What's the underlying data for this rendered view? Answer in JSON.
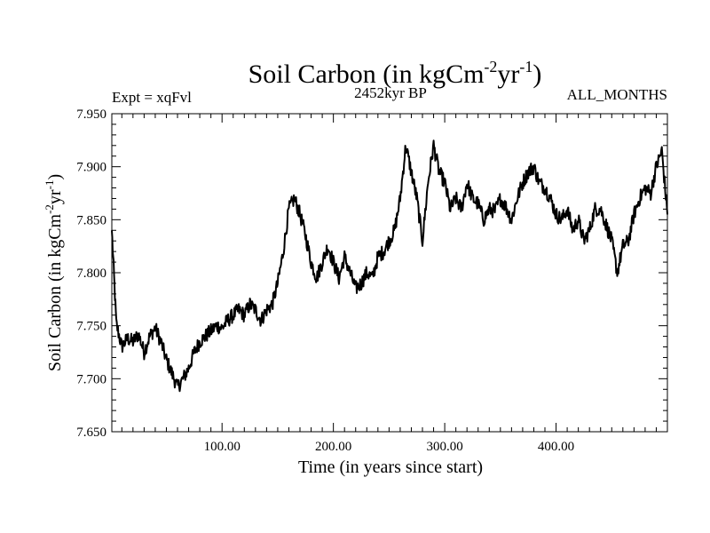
{
  "chart_data": {
    "type": "line",
    "title": {
      "base": "Soil Carbon (in kgCm",
      "sup1": "-2",
      "mid": "yr",
      "sup2": "-1",
      "end": ")"
    },
    "subtitle": "2452kyr BP",
    "left_label": "Expt = xqFvl",
    "right_label": "ALL_MONTHS",
    "xlabel": "Time (in years since start)",
    "ylabel": {
      "base": "Soil Carbon (in kgCm",
      "sup1": "-2",
      "mid": "yr",
      "sup2": "-1",
      "end": ")"
    },
    "xlim": [
      1,
      500
    ],
    "ylim": [
      7.65,
      7.95
    ],
    "x_ticks": [
      100,
      200,
      300,
      400
    ],
    "x_tick_labels": [
      "100.00",
      "200.00",
      "300.00",
      "400.00"
    ],
    "y_ticks": [
      7.65,
      7.7,
      7.75,
      7.8,
      7.85,
      7.9,
      7.95
    ],
    "y_tick_labels": [
      "7.650",
      "7.700",
      "7.750",
      "7.800",
      "7.850",
      "7.900",
      "7.950"
    ],
    "series": [
      {
        "name": "Soil Carbon",
        "color": "#000000",
        "x": [
          1,
          5,
          10,
          15,
          20,
          25,
          30,
          35,
          40,
          45,
          50,
          55,
          60,
          65,
          70,
          75,
          80,
          85,
          90,
          95,
          100,
          105,
          110,
          115,
          120,
          125,
          130,
          135,
          140,
          145,
          150,
          155,
          160,
          165,
          170,
          175,
          180,
          185,
          190,
          195,
          200,
          205,
          210,
          215,
          220,
          225,
          230,
          235,
          240,
          245,
          250,
          255,
          260,
          265,
          270,
          275,
          280,
          285,
          290,
          295,
          300,
          305,
          310,
          315,
          320,
          325,
          330,
          335,
          340,
          345,
          350,
          355,
          360,
          365,
          370,
          375,
          380,
          385,
          390,
          395,
          400,
          405,
          410,
          415,
          420,
          425,
          430,
          435,
          440,
          445,
          450,
          455,
          460,
          465,
          470,
          475,
          480,
          485,
          490,
          495,
          500
        ],
        "values": [
          7.84,
          7.752,
          7.73,
          7.738,
          7.735,
          7.742,
          7.725,
          7.74,
          7.748,
          7.735,
          7.718,
          7.705,
          7.692,
          7.7,
          7.71,
          7.725,
          7.735,
          7.74,
          7.745,
          7.75,
          7.748,
          7.755,
          7.76,
          7.765,
          7.76,
          7.77,
          7.765,
          7.755,
          7.765,
          7.77,
          7.79,
          7.82,
          7.86,
          7.87,
          7.855,
          7.835,
          7.81,
          7.795,
          7.81,
          7.825,
          7.81,
          7.795,
          7.815,
          7.8,
          7.785,
          7.79,
          7.8,
          7.795,
          7.815,
          7.82,
          7.83,
          7.84,
          7.87,
          7.92,
          7.895,
          7.87,
          7.83,
          7.885,
          7.92,
          7.895,
          7.885,
          7.86,
          7.87,
          7.86,
          7.885,
          7.87,
          7.865,
          7.85,
          7.86,
          7.858,
          7.87,
          7.862,
          7.85,
          7.87,
          7.885,
          7.895,
          7.9,
          7.885,
          7.88,
          7.87,
          7.855,
          7.85,
          7.86,
          7.84,
          7.85,
          7.83,
          7.84,
          7.86,
          7.86,
          7.845,
          7.83,
          7.8,
          7.825,
          7.83,
          7.855,
          7.87,
          7.88,
          7.875,
          7.9,
          7.915,
          7.855
        ]
      }
    ],
    "grid": false
  }
}
